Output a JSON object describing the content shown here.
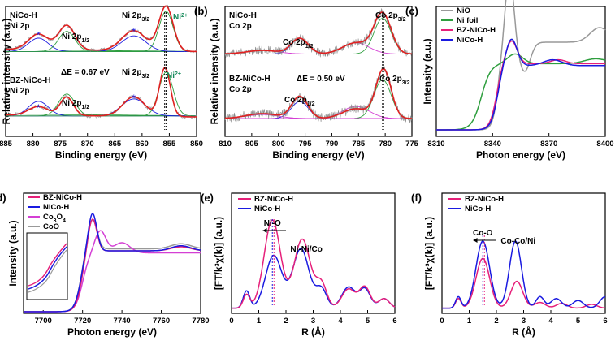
{
  "panels": [
    {
      "id": "a",
      "label": "(a)",
      "xlabel": "Binding energy (eV)",
      "ylabel": "Relative intensity (a.u.)",
      "xlim": [
        885,
        850
      ],
      "xticks": [
        "885",
        "880",
        "875",
        "870",
        "865",
        "860",
        "855",
        "850"
      ],
      "annotations": [
        {
          "text": "NiCo-H",
          "kind": "bold"
        },
        {
          "text": "Ni 2p",
          "kind": "bold"
        },
        {
          "text": "BZ-NiCo-H",
          "kind": "bold"
        },
        {
          "text": "Ni 2p",
          "kind": "bold"
        },
        {
          "text": "Ni 2p",
          "sub": "1/2"
        },
        {
          "text": "Ni 2p",
          "sub": "3/2"
        },
        {
          "text": "Ni 2p",
          "sub": "1/2"
        },
        {
          "text": "Ni 2p",
          "sub": "3/2"
        },
        {
          "text": "ΔE = 0.67 eV"
        },
        {
          "text": "Ni",
          "sup": "2+"
        },
        {
          "text": "Ni",
          "sup": "2+"
        }
      ]
    },
    {
      "id": "b",
      "label": "(b)",
      "xlabel": "Binding energy (eV)",
      "ylabel": "Relative intensity (a.u.)",
      "xlim": [
        810,
        775
      ],
      "xticks": [
        "810",
        "805",
        "800",
        "795",
        "790",
        "785",
        "780",
        "775"
      ],
      "annotations": [
        {
          "text": "NiCo-H",
          "kind": "bold"
        },
        {
          "text": "Co 2p",
          "kind": "bold"
        },
        {
          "text": "BZ-NiCo-H",
          "kind": "bold"
        },
        {
          "text": "Co 2p",
          "kind": "bold"
        },
        {
          "text": "Co 2p",
          "sub": "1/2"
        },
        {
          "text": "Co 2p",
          "sub": "3/2"
        },
        {
          "text": "Co 2p",
          "sub": "1/2"
        },
        {
          "text": "Co 2p",
          "sub": "3/2"
        },
        {
          "text": "ΔE = 0.50 eV"
        }
      ]
    },
    {
      "id": "c",
      "label": "(c)",
      "xlabel": "Photon energy (eV)",
      "ylabel": "Intensity (a.u.)",
      "xlim": [
        8310,
        8400
      ],
      "xticks": [
        "8310",
        "8340",
        "8370",
        "8400"
      ],
      "legend": [
        {
          "name": "NiO",
          "color": "#999999"
        },
        {
          "name": "Ni foil",
          "color": "#2e9e3e"
        },
        {
          "name": "BZ-NiCo-H",
          "color": "#e6207a"
        },
        {
          "name": "NiCo-H",
          "color": "#1a1ae0"
        }
      ]
    },
    {
      "id": "d",
      "label": "(d)",
      "xlabel": "Photon energy (eV)",
      "ylabel": "Intensity (a.u.)",
      "xlim": [
        7690,
        7780
      ],
      "xticks": [
        "7700",
        "7720",
        "7740",
        "7760",
        "7780"
      ],
      "legend": [
        {
          "name": "BZ-NiCo-H",
          "color": "#e6207a"
        },
        {
          "name": "NiCo-H",
          "color": "#1a1ae0"
        },
        {
          "name": "Co",
          "sub": "3",
          "name2": "O",
          "sub2": "4",
          "color": "#d43fd4"
        },
        {
          "name": "CoO",
          "color": "#999999"
        }
      ]
    },
    {
      "id": "e",
      "label": "(e)",
      "xlabel": "R (Å)",
      "ylabel": "[FT/k³χ(k)] (a.u.)",
      "xlim": [
        0,
        6
      ],
      "xticks": [
        "0",
        "1",
        "2",
        "3",
        "4",
        "5",
        "6"
      ],
      "legend": [
        {
          "name": "BZ-NiCo-H",
          "color": "#e6207a"
        },
        {
          "name": "NiCo-H",
          "color": "#1a1ae0"
        }
      ],
      "annotations": [
        {
          "text": "Ni-O"
        },
        {
          "text": "Ni-Ni/Co"
        }
      ]
    },
    {
      "id": "f",
      "label": "(f)",
      "xlabel": "R (Å)",
      "ylabel": "[FT/k³χ(k)] (a.u.)",
      "xlim": [
        0,
        6
      ],
      "xticks": [
        "0",
        "1",
        "2",
        "3",
        "4",
        "5",
        "6"
      ],
      "legend": [
        {
          "name": "BZ-NiCo-H",
          "color": "#e6207a"
        },
        {
          "name": "NiCo-H",
          "color": "#1a1ae0"
        }
      ],
      "annotations": [
        {
          "text": "Co-O"
        },
        {
          "text": "Co-Co/Ni"
        }
      ]
    }
  ],
  "chart_data": [
    {
      "type": "line",
      "panel": "a",
      "xlim": [
        885,
        850
      ],
      "series": [
        {
          "name": "NiCo-H fit",
          "peaks": [
            879,
            874,
            861.5,
            855.6
          ]
        },
        {
          "name": "BZ-NiCo-H fit",
          "peaks": [
            879,
            873.8,
            861.3,
            855.8
          ]
        }
      ]
    },
    {
      "type": "line",
      "panel": "b",
      "xlim": [
        810,
        775
      ],
      "series": [
        {
          "name": "NiCo-H fit",
          "peaks": [
            796,
            780.5
          ]
        },
        {
          "name": "BZ-NiCo-H fit",
          "peaks": [
            796,
            780.3
          ]
        }
      ]
    },
    {
      "type": "line",
      "panel": "c",
      "xlim": [
        8310,
        8400
      ],
      "series": [
        {
          "name": "NiO",
          "peak_x": 8350
        },
        {
          "name": "Ni foil",
          "peak_x": 8352
        },
        {
          "name": "BZ-NiCo-H",
          "peak_x": 8350
        },
        {
          "name": "NiCo-H",
          "peak_x": 8350
        }
      ]
    },
    {
      "type": "line",
      "panel": "d",
      "xlim": [
        7690,
        7780
      ],
      "series": [
        {
          "name": "BZ-NiCo-H",
          "peak_x": 7725
        },
        {
          "name": "NiCo-H",
          "peak_x": 7725
        },
        {
          "name": "Co3O4",
          "peak_x": 7728
        },
        {
          "name": "CoO",
          "peak_x": 7725
        }
      ]
    },
    {
      "type": "line",
      "panel": "e",
      "xlim": [
        0,
        6
      ],
      "series": [
        {
          "name": "BZ-NiCo-H",
          "peaks": [
            1.5,
            2.6
          ]
        },
        {
          "name": "NiCo-H",
          "peaks": [
            1.55,
            2.55
          ]
        }
      ]
    },
    {
      "type": "line",
      "panel": "f",
      "xlim": [
        0,
        6
      ],
      "series": [
        {
          "name": "BZ-NiCo-H",
          "peaks": [
            1.5,
            2.75
          ]
        },
        {
          "name": "NiCo-H",
          "peaks": [
            1.5,
            2.7
          ]
        }
      ]
    }
  ]
}
